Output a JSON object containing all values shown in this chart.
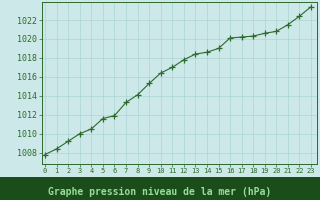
{
  "x": [
    0,
    1,
    2,
    3,
    4,
    5,
    6,
    7,
    8,
    9,
    10,
    11,
    12,
    13,
    14,
    15,
    16,
    17,
    18,
    19,
    20,
    21,
    22,
    23
  ],
  "y": [
    1007.8,
    1008.4,
    1009.2,
    1010.0,
    1010.5,
    1011.6,
    1011.9,
    1013.3,
    1014.1,
    1015.3,
    1016.4,
    1017.0,
    1017.8,
    1018.4,
    1018.6,
    1019.0,
    1020.1,
    1020.2,
    1020.3,
    1020.6,
    1020.8,
    1021.5,
    1022.4,
    1023.4
  ],
  "line_color": "#2d6a2d",
  "marker": "+",
  "marker_color": "#2d6a2d",
  "marker_size": 4,
  "line_width": 0.8,
  "bg_color": "#cce8e8",
  "plot_bg_color": "#cce8e8",
  "grid_color": "#aad4d4",
  "xlabel": "Graphe pression niveau de la mer (hPa)",
  "xlabel_color": "#2d6a2d",
  "xlabel_bg_color": "#1a4d1a",
  "xlabel_fontsize": 7,
  "ylabel_ticks": [
    1008,
    1010,
    1012,
    1014,
    1016,
    1018,
    1020,
    1022
  ],
  "ytick_fontsize": 6,
  "xtick_fontsize": 5,
  "xlim": [
    -0.3,
    23.5
  ],
  "ylim": [
    1006.8,
    1023.9
  ],
  "tick_color": "#2d6a2d",
  "tick_label_color": "#2d6a2d",
  "spine_color": "#2d6a2d",
  "xtick_labels": [
    "0",
    "1",
    "2",
    "3",
    "4",
    "5",
    "6",
    "7",
    "8",
    "9",
    "10",
    "11",
    "12",
    "13",
    "14",
    "15",
    "16",
    "17",
    "18",
    "19",
    "20",
    "21",
    "22",
    "23"
  ]
}
